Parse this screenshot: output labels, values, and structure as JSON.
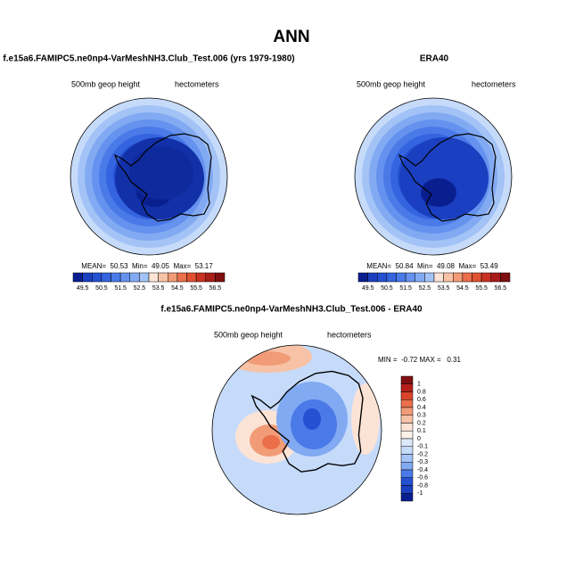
{
  "title": "ANN",
  "panels": [
    {
      "title": "f.e15a6.FAMIPC5.ne0np4-VarMeshNH3.Club_Test.006 (yrs 1979-1980)",
      "left_label": "500mb geop height",
      "right_label": "hectometers",
      "stats": "MEAN=  50.53  Min=  49.05  Max=  53.17",
      "colorbar": [
        "49.5",
        "50.5",
        "51.5",
        "52.5",
        "53.5",
        "54.5",
        "55.5",
        "56.5"
      ]
    },
    {
      "title": "ERA40",
      "left_label": "500mb geop height",
      "right_label": "hectometers",
      "stats": "MEAN=  50.84  Min=  49.08  Max=  53.49",
      "colorbar": [
        "49.5",
        "50.5",
        "51.5",
        "52.5",
        "53.5",
        "54.5",
        "55.5",
        "56.5"
      ]
    },
    {
      "title": "f.e15a6.FAMIPC5.ne0np4-VarMeshNH3.Club_Test.006 - ERA40",
      "left_label": "500mb geop height",
      "right_label": "hectometers",
      "stats": "MIN =  -0.72 MAX =   0.31",
      "colorbar": [
        "1",
        "0.8",
        "0.6",
        "0.4",
        "0.3",
        "0.2",
        "0.1",
        "0",
        "-0.1",
        "-0.2",
        "-0.3",
        "-0.4",
        "-0.6",
        "-0.8",
        "-1"
      ]
    }
  ]
}
